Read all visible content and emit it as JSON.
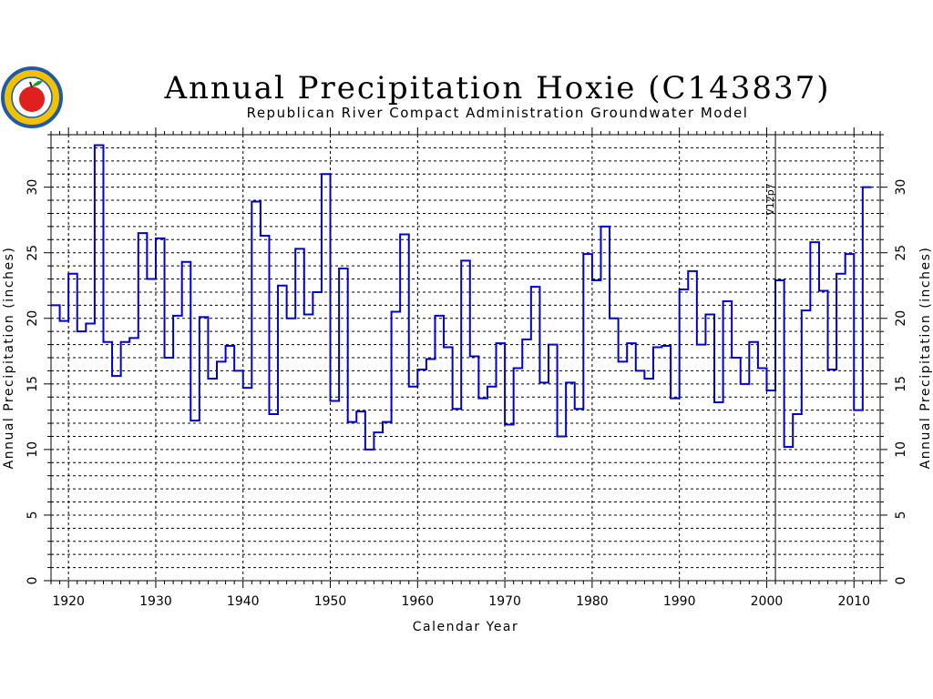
{
  "logo": {
    "icon": "apple-logo-icon",
    "ring_color": "#1e5aa8",
    "apple_color": "#e02020"
  },
  "chart_data": {
    "type": "line",
    "step": true,
    "title": "Annual Precipitation Hoxie (C143837)",
    "subtitle": "Republican River Compact Administration Groundwater Model",
    "xlabel": "Calendar Year",
    "ylabel_left": "Annual Precipitation (inches)",
    "ylabel_right": "Annual Precipitation (inches)",
    "xlim": [
      1918,
      2013
    ],
    "ylim": [
      0,
      34
    ],
    "x_ticks": [
      1920,
      1930,
      1940,
      1950,
      1960,
      1970,
      1980,
      1990,
      2000,
      2010
    ],
    "y_ticks": [
      0,
      5,
      10,
      15,
      20,
      25,
      30
    ],
    "grid": true,
    "line_color": "#0000cc",
    "marker_line": {
      "x": 2001,
      "label": "V12p7"
    },
    "series": [
      {
        "years": [
          1918,
          1919,
          1920,
          1921,
          1922,
          1923,
          1924,
          1925,
          1926,
          1927,
          1928,
          1929,
          1930,
          1931,
          1932,
          1933,
          1934,
          1935,
          1936,
          1937,
          1938,
          1939,
          1940,
          1941,
          1942,
          1943,
          1944,
          1945,
          1946,
          1947,
          1948,
          1949,
          1950,
          1951,
          1952,
          1953,
          1954,
          1955,
          1956,
          1957,
          1958,
          1959,
          1960,
          1961,
          1962,
          1963,
          1964,
          1965,
          1966,
          1967,
          1968,
          1969,
          1970,
          1971,
          1972,
          1973,
          1974,
          1975,
          1976,
          1977,
          1978,
          1979,
          1980,
          1981,
          1982,
          1983,
          1984,
          1985,
          1986,
          1987,
          1988,
          1989,
          1990,
          1991,
          1992,
          1993,
          1994,
          1995,
          1996,
          1997,
          1998,
          1999,
          2000,
          2001,
          2002,
          2003,
          2004,
          2005,
          2006,
          2007,
          2008,
          2009,
          2010,
          2011
        ],
        "values": [
          21.0,
          19.8,
          23.4,
          19.0,
          19.6,
          33.2,
          18.2,
          15.6,
          18.2,
          18.5,
          26.5,
          23.0,
          26.1,
          17.0,
          20.2,
          24.3,
          12.2,
          20.1,
          15.4,
          16.7,
          17.9,
          16.0,
          14.7,
          28.9,
          26.3,
          12.7,
          22.5,
          20.0,
          25.3,
          20.3,
          22.0,
          31.0,
          13.7,
          23.8,
          12.1,
          12.9,
          10.0,
          11.3,
          12.1,
          20.5,
          26.4,
          14.8,
          16.1,
          16.9,
          20.2,
          17.8,
          13.1,
          24.4,
          17.1,
          13.9,
          14.8,
          18.1,
          11.9,
          16.2,
          18.4,
          22.4,
          15.1,
          18.0,
          11.0,
          15.1,
          13.1,
          24.9,
          22.9,
          27.0,
          20.0,
          16.7,
          18.1,
          16.0,
          15.4,
          17.8,
          17.9,
          13.9,
          22.2,
          23.6,
          18.0,
          20.3,
          13.6,
          21.3,
          17.0,
          15.0,
          18.2,
          16.2,
          14.5,
          22.9,
          10.2,
          12.7,
          20.6,
          25.8,
          22.1,
          16.1,
          23.4,
          24.9,
          13.0,
          30.0
        ]
      }
    ]
  }
}
